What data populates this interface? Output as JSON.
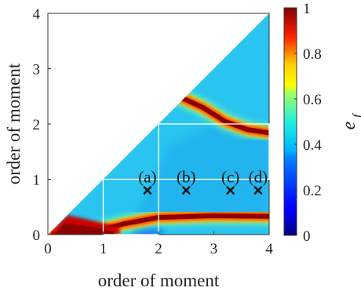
{
  "chart_data": {
    "type": "heatmap",
    "title": "",
    "xlabel": "order of moment",
    "ylabel": "order of moment",
    "xlim": [
      0,
      4
    ],
    "ylim": [
      0,
      4
    ],
    "xticks": [
      "0",
      "1",
      "2",
      "3",
      "4"
    ],
    "yticks": [
      "0",
      "1",
      "2",
      "3",
      "4"
    ],
    "colorbar": {
      "label": "e",
      "label_subscript": "f",
      "range": [
        0,
        1
      ],
      "ticks": [
        "0",
        "0.2",
        "0.4",
        "0.6",
        "0.8",
        "1"
      ],
      "colormap": "jet"
    },
    "domain": "lower triangle (y <= x)",
    "background_value": 0.36,
    "high_bands": [
      {
        "name": "lower band",
        "x_range": [
          0.1,
          4.0
        ],
        "y_at_x": [
          [
            0.1,
            0.0
          ],
          [
            0.8,
            0.05
          ],
          [
            1.4,
            0.2
          ],
          [
            2.0,
            0.31
          ],
          [
            3.0,
            0.34
          ],
          [
            4.0,
            0.33
          ]
        ]
      },
      {
        "name": "upper arc",
        "x_range": [
          2.4,
          4.0
        ],
        "y_at_x": [
          [
            2.4,
            2.48
          ],
          [
            2.8,
            2.3
          ],
          [
            3.2,
            2.05
          ],
          [
            3.6,
            1.9
          ],
          [
            4.0,
            1.84
          ]
        ]
      }
    ],
    "low_regions": [
      {
        "name": "low pocket",
        "center": [
          1.8,
          0.05
        ],
        "value": 0.2
      }
    ],
    "boxes": [
      {
        "x": [
          1,
          2
        ],
        "y": [
          0,
          1
        ]
      },
      {
        "x": [
          2,
          4
        ],
        "y": [
          1,
          2
        ]
      }
    ],
    "markers": [
      {
        "label": "(a)",
        "x": 1.8,
        "y": 0.8
      },
      {
        "label": "(b)",
        "x": 2.5,
        "y": 0.8
      },
      {
        "label": "(c)",
        "x": 3.3,
        "y": 0.8
      },
      {
        "label": "(d)",
        "x": 3.8,
        "y": 0.8
      }
    ],
    "colors": {
      "background": "#29c4f0",
      "lower_cells": "#1aa8ef",
      "band_core": "#8b0000",
      "band_edge": "#ffd000",
      "box_line": "#ffffff",
      "marker": "#1a1a1a"
    }
  }
}
